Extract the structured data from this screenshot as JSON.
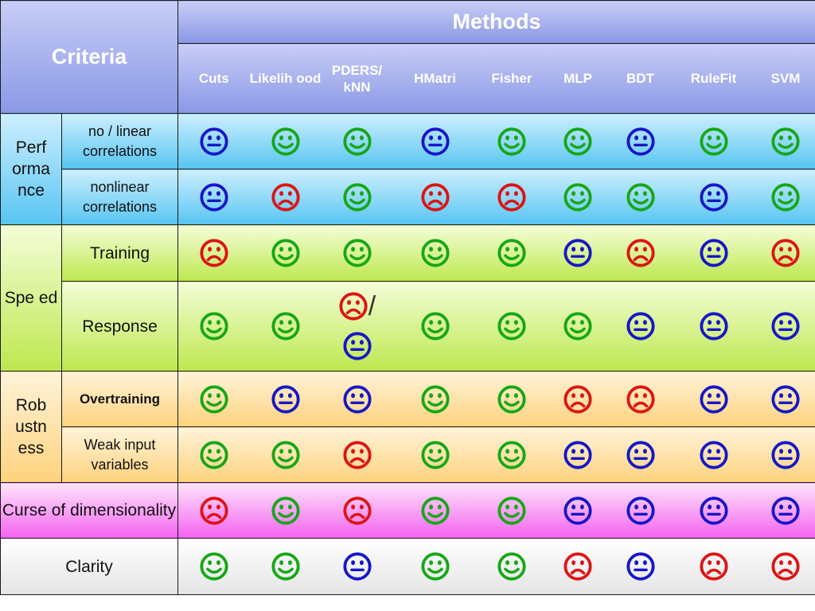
{
  "header": {
    "criteria": "Criteria",
    "methods": "Methods"
  },
  "methods": [
    "Cuts",
    "Likelih ood",
    "PDERS/ kNN",
    "HMatri",
    "Fisher",
    "MLP",
    "BDT",
    "RuleFit",
    "SVM"
  ],
  "colors": {
    "good": "#16a716",
    "neutral": "#1616c8",
    "bad": "#dc1414"
  },
  "groups": {
    "performance": "Perf orma nce",
    "speed": "Spe ed",
    "robustness": "Rob ustn ess",
    "curse": "Curse of dimensionality",
    "clarity": "Clarity"
  },
  "rows": [
    {
      "label": "no / linear correlations",
      "ratings": [
        "neutral",
        "good",
        "good",
        "neutral",
        "good",
        "good",
        "neutral",
        "good",
        "good"
      ]
    },
    {
      "label": "nonlinear correlations",
      "ratings": [
        "neutral",
        "bad",
        "good",
        "bad",
        "bad",
        "good",
        "good",
        "neutral",
        "good"
      ]
    },
    {
      "label": "Training",
      "ratings": [
        "bad",
        "good",
        "good",
        "good",
        "good",
        "neutral",
        "bad",
        "neutral",
        "bad"
      ]
    },
    {
      "label": "Response",
      "ratings": [
        "good",
        "good",
        "bad/neutral",
        "good",
        "good",
        "good",
        "neutral",
        "neutral",
        "neutral"
      ],
      "slash": "/"
    },
    {
      "label": "Overtraining",
      "ratings": [
        "good",
        "neutral",
        "neutral",
        "good",
        "good",
        "bad",
        "bad",
        "neutral",
        "neutral"
      ]
    },
    {
      "label": "Weak input variables",
      "ratings": [
        "good",
        "good",
        "bad",
        "good",
        "good",
        "neutral",
        "neutral",
        "neutral",
        "neutral"
      ]
    },
    {
      "label": "Curse of dimensionality",
      "ratings": [
        "bad",
        "good",
        "bad",
        "good",
        "good",
        "neutral",
        "neutral",
        "neutral",
        "neutral"
      ]
    },
    {
      "label": "Clarity",
      "ratings": [
        "good",
        "good",
        "neutral",
        "good",
        "good",
        "bad",
        "neutral",
        "bad",
        "bad"
      ]
    }
  ]
}
